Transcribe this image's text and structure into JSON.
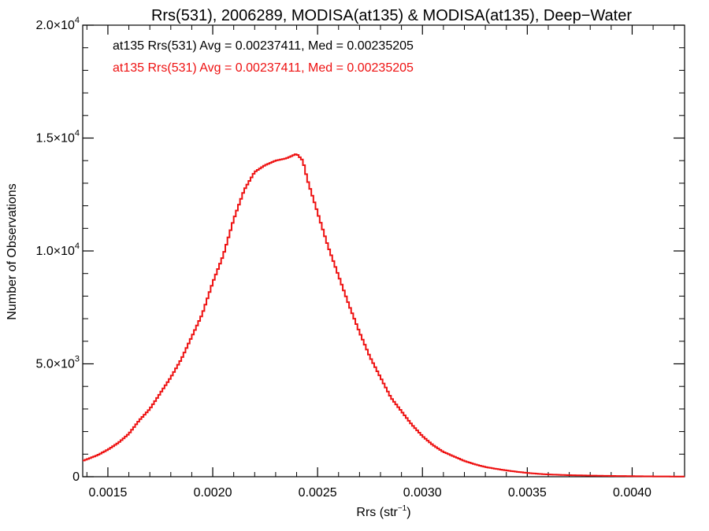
{
  "chart_data": {
    "type": "line",
    "title": "Rrs(531), 2006289, MODISA(at135) & MODISA(at135), Deep−Water",
    "xlabel": "Rrs (str",
    "xlabel_sup": "−1",
    "xlabel_close": ")",
    "ylabel": "Number of Observations",
    "xlim": [
      0.00138,
      0.00425
    ],
    "ylim": [
      0,
      20000
    ],
    "x_ticks": [
      {
        "value": 0.0015,
        "label": "0.0015"
      },
      {
        "value": 0.002,
        "label": "0.0020"
      },
      {
        "value": 0.0025,
        "label": "0.0025"
      },
      {
        "value": 0.003,
        "label": "0.0030"
      },
      {
        "value": 0.0035,
        "label": "0.0035"
      },
      {
        "value": 0.004,
        "label": "0.0040"
      }
    ],
    "y_ticks": [
      {
        "value": 0,
        "mant": "0",
        "exp": ""
      },
      {
        "value": 5000,
        "mant": "5.0×10",
        "exp": "3"
      },
      {
        "value": 10000,
        "mant": "1.0×10",
        "exp": "4"
      },
      {
        "value": 15000,
        "mant": "1.5×10",
        "exp": "4"
      },
      {
        "value": 20000,
        "mant": "2.0×10",
        "exp": "4"
      }
    ],
    "annotations": [
      {
        "text": "at135 Rrs(531) Avg = 0.00237411, Med = 0.00235205",
        "color": "#000000"
      },
      {
        "text": "at135 Rrs(531) Avg = 0.00237411, Med = 0.00235205",
        "color": "#ee1111"
      }
    ],
    "series": [
      {
        "color": "#ee1111",
        "step": true,
        "x": [
          0.00138,
          0.00145,
          0.0015,
          0.00155,
          0.0016,
          0.00165,
          0.0017,
          0.00175,
          0.0018,
          0.00185,
          0.0019,
          0.00195,
          0.002,
          0.00205,
          0.0021,
          0.00215,
          0.0022,
          0.00225,
          0.0023,
          0.00235,
          0.0024,
          0.00243,
          0.00245,
          0.0025,
          0.00255,
          0.0026,
          0.00265,
          0.0027,
          0.00275,
          0.0028,
          0.00285,
          0.0029,
          0.00295,
          0.003,
          0.00305,
          0.0031,
          0.00315,
          0.0032,
          0.00325,
          0.0033,
          0.00335,
          0.0034,
          0.00345,
          0.0035,
          0.00355,
          0.0036,
          0.0037,
          0.0038,
          0.0039,
          0.004,
          0.0041,
          0.0042,
          0.00425
        ],
        "y": [
          700,
          950,
          1200,
          1500,
          1900,
          2500,
          3000,
          3700,
          4400,
          5200,
          6200,
          7200,
          8600,
          9800,
          11400,
          12700,
          13500,
          13800,
          14000,
          14100,
          14300,
          14000,
          13200,
          11700,
          10200,
          8900,
          7600,
          6400,
          5300,
          4400,
          3500,
          2900,
          2300,
          1800,
          1400,
          1100,
          900,
          700,
          550,
          430,
          350,
          280,
          220,
          170,
          130,
          100,
          70,
          50,
          35,
          25,
          15,
          10,
          8
        ]
      }
    ]
  }
}
